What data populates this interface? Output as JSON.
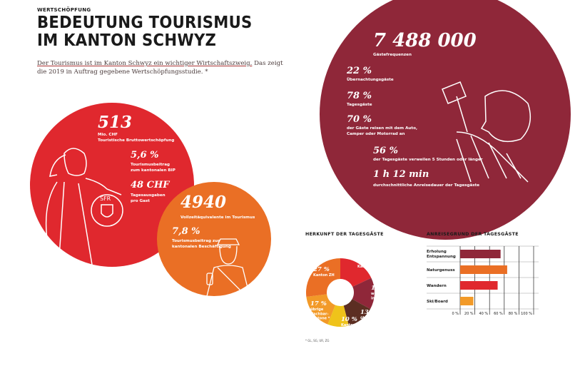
{
  "header": {
    "kicker": "WERTSCHÖPFUNG",
    "title_line1": "BEDEUTUNG TOURISMUS",
    "title_line2": "IM KANTON SCHWYZ",
    "lead_underlined": "Der Tourismus ist im Kanton Schwyz ein wichtiger Wirtschaftszweig.",
    "lead_rest": " Das zeigt die 2019 in Auftrag gegebene Wertschöpfungsstudie. *"
  },
  "colors": {
    "red": "#e0282e",
    "orange": "#ea6f25",
    "maroon": "#8f2739"
  },
  "economy": {
    "value1": "513",
    "label1a": "Mio. CHF",
    "label1b": "Touristische Bruttowertschöpfung",
    "value2": "5,6 %",
    "label2a": "Tourismusbeitrag",
    "label2b": "zum kantonalen BIP",
    "value3": "48 CHF",
    "label3a": "Tagesausgaben",
    "label3b": "pro Gast",
    "coin_text": "SFR"
  },
  "employment": {
    "value1": "4940",
    "label1": "Vollzeitäquivalente im Tourismus",
    "value2": "7,8 %",
    "label2a": "Tourismusbeitrag zur",
    "label2b": "kantonalen Beschäftigung"
  },
  "guests": {
    "value1": "7 488 000",
    "label1": "Gästefrequenzen",
    "value2": "22 %",
    "label2": "Übernachtungsgäste",
    "value3": "78 %",
    "label3": "Tagesgäste",
    "value4": "70 %",
    "label4a": "der Gäste reisen mit dem Auto,",
    "label4b": "Camper oder Motorrad an",
    "value5": "56 %",
    "label5": "der Tagesgäste verweilen 5 Stunden oder länger",
    "value6": "1 h 12 min",
    "label6": "durchschnittliche Anreisedauer der Tagesgäste"
  },
  "chart_data": [
    {
      "type": "pie",
      "title": "HERKUNFT DER TAGESGÄSTE",
      "footnote": "* GL, SG, UR, ZG",
      "slices": [
        {
          "value": 18,
          "pct": "18 %",
          "label": "Kanton LU",
          "color": "#e0282e"
        },
        {
          "value": 15,
          "pct": "15 %",
          "label": "wohnhaft im Ausland",
          "color": "#8f2739"
        },
        {
          "value": 13,
          "pct": "13 %",
          "label": "übrige Kantone",
          "color": "#5c2e22"
        },
        {
          "value": 10,
          "pct": "10 %",
          "label": "Kanton AG",
          "color": "#efc31a"
        },
        {
          "value": 17,
          "pct": "17 %",
          "label": "übrige Nachbar-kantone *",
          "color": "#f29a28"
        },
        {
          "value": 27,
          "pct": "27 %",
          "label": "Kanton ZH",
          "color": "#ea6f25"
        }
      ]
    },
    {
      "type": "bar",
      "title": "ANREISEGRUND DER TAGESGÄSTE",
      "orientation": "horizontal",
      "xlim": [
        0,
        100
      ],
      "ticks": [
        "0 %",
        "20 %",
        "40 %",
        "60 %",
        "80 %",
        "100 %"
      ],
      "categories": [
        "Erholung Entspannung",
        "Naturgenuss",
        "Wandern",
        "Ski/Board"
      ],
      "values": [
        55,
        64,
        51,
        18
      ],
      "colors": [
        "#8f2739",
        "#ea6f25",
        "#e0282e",
        "#f29a28"
      ],
      "grid": true
    }
  ]
}
